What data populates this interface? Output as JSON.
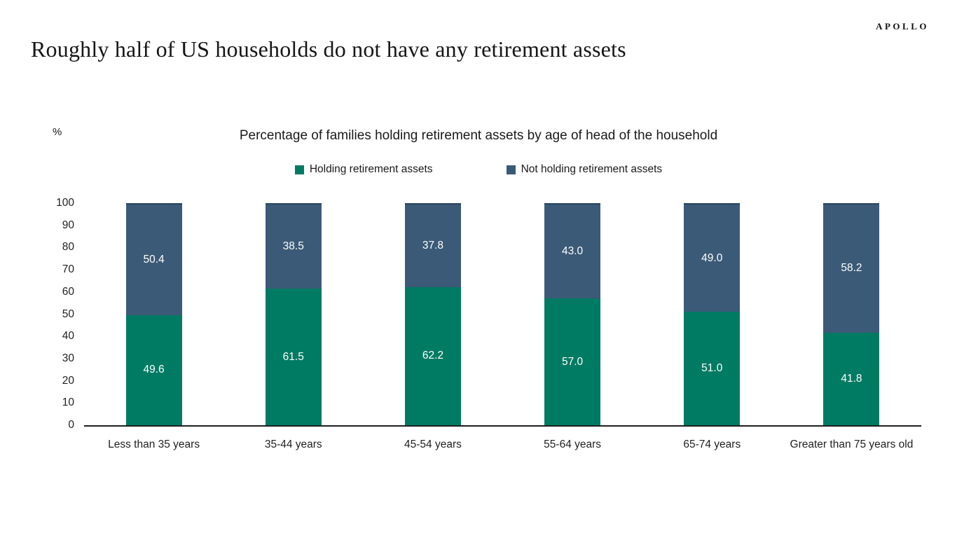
{
  "logo": "APOLLO",
  "title": "Roughly half of US households do not have any retirement assets",
  "chart_data": {
    "type": "bar",
    "stacked": true,
    "title": "Percentage of families holding retirement assets by age of head of the household",
    "unit_label": "%",
    "categories": [
      "Less than 35 years",
      "35-44 years",
      "45-54 years",
      "55-64 years",
      "65-74 years",
      "Greater than 75 years old"
    ],
    "series": [
      {
        "name": "Holding retirement assets",
        "color": "#007b63",
        "values": [
          49.6,
          61.5,
          62.2,
          57.0,
          51.0,
          41.8
        ]
      },
      {
        "name": "Not holding retirement assets",
        "color": "#3b5a77",
        "top_edge_color": "#27455f",
        "values": [
          50.4,
          38.5,
          37.8,
          43.0,
          49.0,
          58.2
        ]
      }
    ],
    "ylim": [
      0,
      100
    ],
    "yticks": [
      0,
      10,
      20,
      30,
      40,
      50,
      60,
      70,
      80,
      90,
      100
    ],
    "ylabel": "%",
    "legend_position": "top",
    "grid": false,
    "axis_color": "#1f1f1f"
  }
}
